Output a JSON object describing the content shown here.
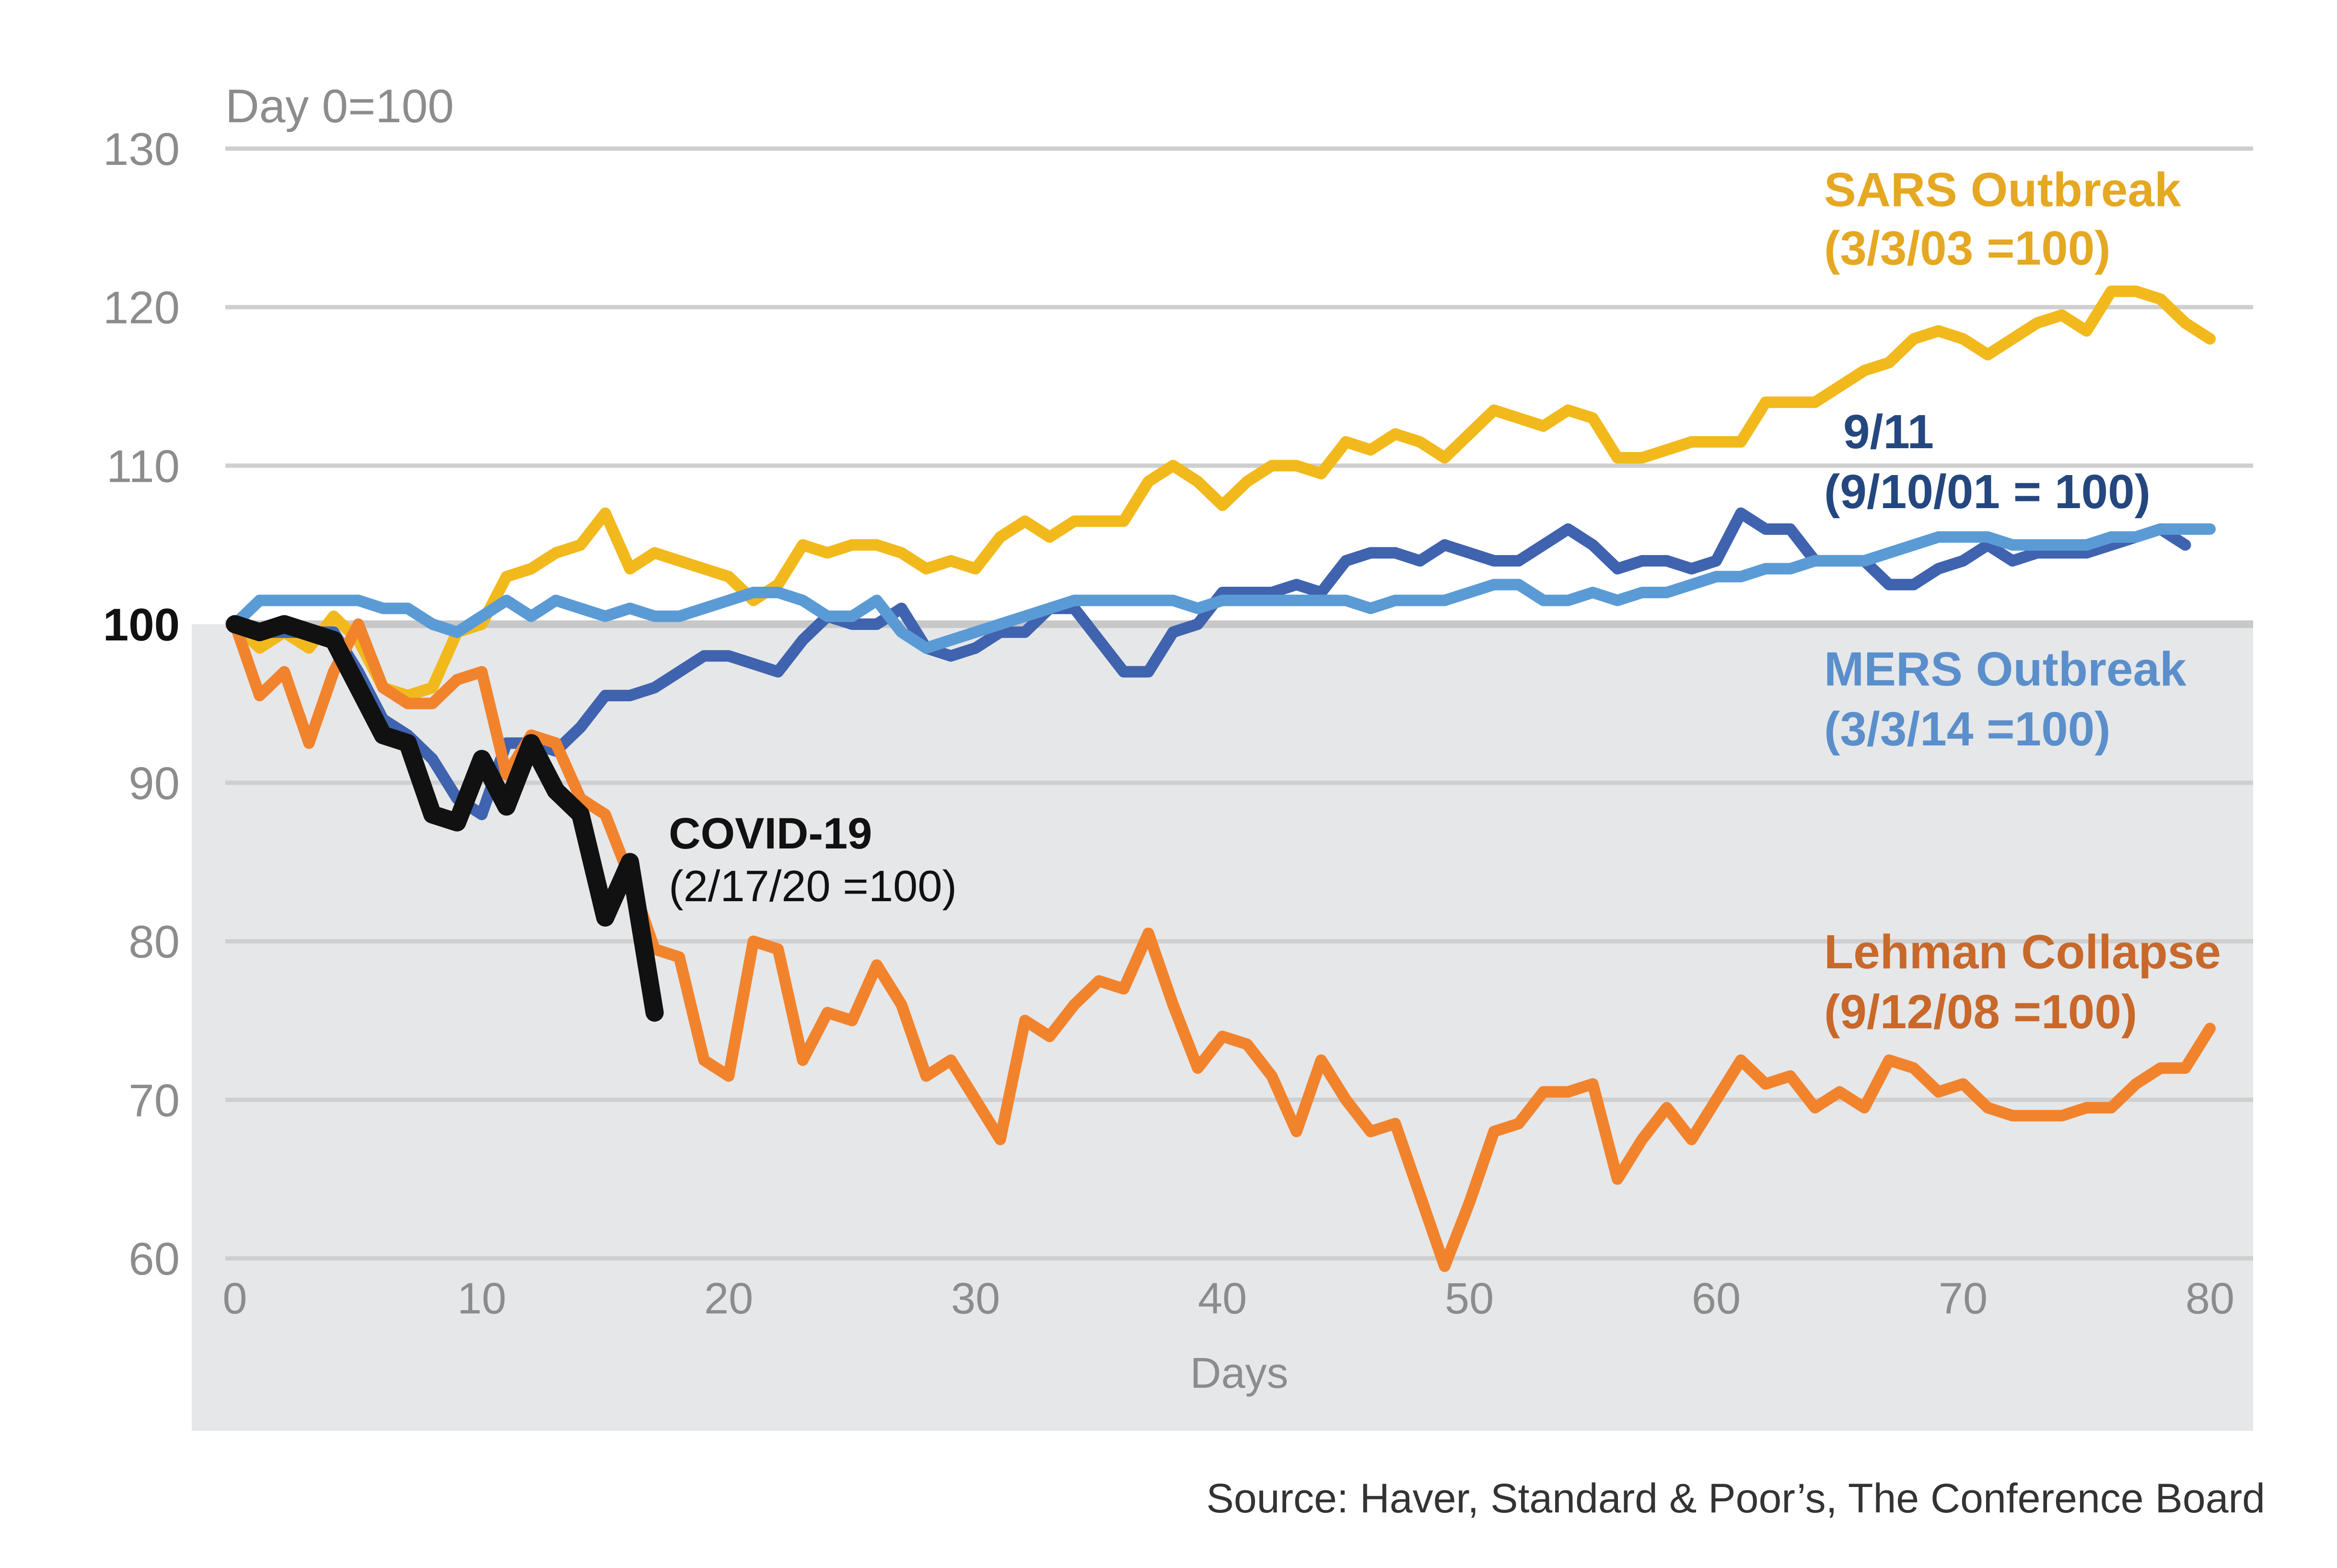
{
  "chart_data": {
    "type": "line",
    "ylabel": "Day 0=100",
    "xlabel": "Days",
    "source": "Source: Haver, Standard & Poor’s, The Conference Board",
    "xlim": [
      0,
      80
    ],
    "ylim": [
      57,
      130
    ],
    "shade_below": 100,
    "grid": true,
    "x_ticks": [
      "0",
      "10",
      "20",
      "30",
      "40",
      "50",
      "60",
      "70",
      "80"
    ],
    "y_ticks": [
      "60",
      "70",
      "80",
      "90",
      "100",
      "110",
      "120",
      "130"
    ],
    "series": [
      {
        "name": "SARS Outbreak",
        "date_label": "(3/3/03 =100)",
        "color": "#F2B91C",
        "values": [
          100,
          98.5,
          99.5,
          98.5,
          100.5,
          99,
          96,
          95.5,
          96,
          99.5,
          100,
          103,
          103.5,
          104.5,
          105,
          107,
          103.5,
          104.5,
          104,
          103.5,
          103,
          101.5,
          102.5,
          105,
          104.5,
          105,
          105,
          104.5,
          103.5,
          104,
          103.5,
          105.5,
          106.5,
          105.5,
          106.5,
          106.5,
          106.5,
          109,
          110,
          109,
          107.5,
          109,
          110,
          110,
          109.5,
          111.5,
          111,
          112,
          111.5,
          110.5,
          112,
          113.5,
          113,
          112.5,
          113.5,
          113,
          110.5,
          110.5,
          111,
          111.5,
          111.5,
          111.5,
          114,
          114,
          114,
          115,
          116,
          116.5,
          118,
          118.5,
          118,
          117,
          118,
          119,
          119.5,
          118.5,
          121,
          121,
          120.5,
          119,
          118
        ]
      },
      {
        "name": "9/11",
        "date_label": "(9/10/01 = 100)",
        "color": "#3F63AE",
        "values": [
          100,
          99.5,
          99.5,
          99.5,
          99.5,
          97,
          94,
          93,
          91.5,
          89,
          88,
          92.5,
          92.5,
          92,
          93.5,
          95.5,
          95.5,
          96,
          97,
          98,
          98,
          97.5,
          97,
          99,
          100.5,
          100,
          100,
          101,
          98.5,
          98,
          98.5,
          99.5,
          99.5,
          101,
          101,
          99,
          97,
          97,
          99.5,
          100,
          102,
          102,
          102,
          102.5,
          102,
          104,
          104.5,
          104.5,
          104,
          105,
          104.5,
          104,
          104,
          105,
          106,
          105,
          103.5,
          104,
          104,
          103.5,
          104,
          107,
          106,
          106,
          104,
          104,
          104,
          102.5,
          102.5,
          103.5,
          104,
          105,
          104,
          104.5,
          104.5,
          104.5,
          105,
          105.5,
          106,
          105
        ]
      },
      {
        "name": "MERS Outbreak",
        "date_label": "(3/3/14 =100)",
        "color": "#5B9BD5",
        "values": [
          100,
          101.5,
          101.5,
          101.5,
          101.5,
          101.5,
          101,
          101,
          100,
          99.5,
          100.5,
          101.5,
          100.5,
          101.5,
          101,
          100.5,
          101,
          100.5,
          100.5,
          101,
          101.5,
          102,
          102,
          101.5,
          100.5,
          100.5,
          101.5,
          99.5,
          98.5,
          99,
          99.5,
          100,
          100.5,
          101,
          101.5,
          101.5,
          101.5,
          101.5,
          101.5,
          101,
          101.5,
          101.5,
          101.5,
          101.5,
          101.5,
          101.5,
          101,
          101.5,
          101.5,
          101.5,
          102,
          102.5,
          102.5,
          101.5,
          101.5,
          102,
          101.5,
          102,
          102,
          102.5,
          103,
          103,
          103.5,
          103.5,
          104,
          104,
          104,
          104.5,
          105,
          105.5,
          105.5,
          105.5,
          105,
          105,
          105,
          105,
          105.5,
          105.5,
          106,
          106,
          106
        ]
      },
      {
        "name": "Lehman Collapse",
        "date_label": "(9/12/08 =100)",
        "color": "#F2832D",
        "values": [
          100,
          95.5,
          97,
          92.5,
          97,
          100,
          96,
          95,
          95,
          96.5,
          97,
          90.5,
          93,
          92.5,
          89,
          88,
          84,
          79.5,
          79,
          72.5,
          71.5,
          80,
          79.5,
          72.5,
          75.5,
          75,
          78.5,
          76,
          71.5,
          72.5,
          70,
          67.5,
          75,
          74,
          76,
          77.5,
          77,
          80.5,
          76,
          72,
          74,
          73.5,
          71.5,
          68,
          72.5,
          70,
          68,
          68.5,
          64,
          59.5,
          63.5,
          68,
          68.5,
          70.5,
          70.5,
          71,
          65,
          67.5,
          69.5,
          67.5,
          70,
          72.5,
          71,
          71.5,
          69.5,
          70.5,
          69.5,
          72.5,
          72,
          70.5,
          71,
          69.5,
          69,
          69,
          69,
          69.5,
          69.5,
          71,
          72,
          72,
          74.5
        ]
      },
      {
        "name": "COVID-19",
        "date_label": "(2/17/20 =100)",
        "color": "#111111",
        "values": [
          100,
          99.5,
          100,
          99.5,
          99,
          96,
          93,
          92.5,
          88,
          87.5,
          91.5,
          88.5,
          92.5,
          89.5,
          88,
          81.5,
          85,
          75.5
        ]
      }
    ]
  }
}
